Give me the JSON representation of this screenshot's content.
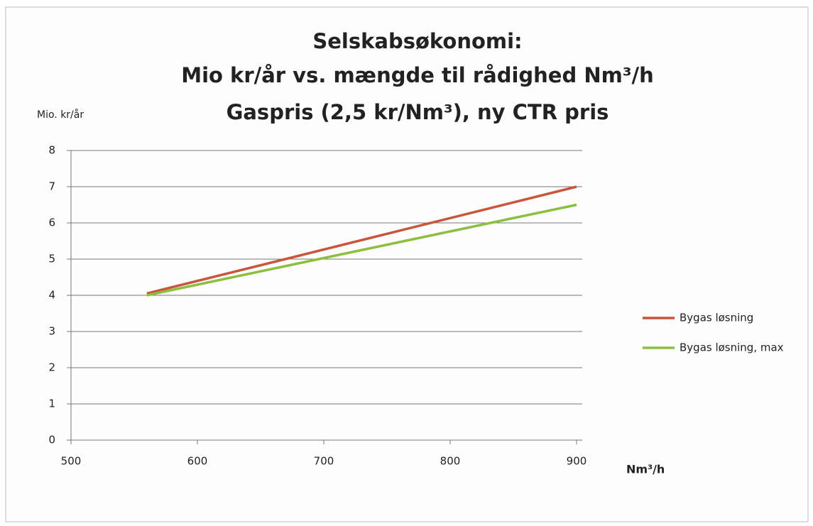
{
  "chart_data": {
    "type": "line",
    "title": [
      "Selskabsøkonomi:",
      "Mio kr/år vs. mængde til rådighed Nm³/h",
      "Gaspris (2,5 kr/Nm³), ny CTR pris"
    ],
    "y_label": "Mio. kr/år",
    "x_label": "Nm³/h",
    "x": [
      560,
      900
    ],
    "series": [
      {
        "name": "Bygas løsning",
        "color": "#c9553a",
        "values": [
          4.05,
          7.0
        ]
      },
      {
        "name": "Bygas løsning, max",
        "color": "#8cbf3f",
        "values": [
          4.0,
          6.5
        ]
      }
    ],
    "xlim": [
      500,
      900
    ],
    "xticks": [
      500,
      600,
      700,
      800,
      900
    ],
    "ylim": [
      0,
      8
    ],
    "yticks": [
      0,
      1,
      2,
      3,
      4,
      5,
      6,
      7,
      8
    ],
    "grid": true,
    "legend": "right"
  }
}
